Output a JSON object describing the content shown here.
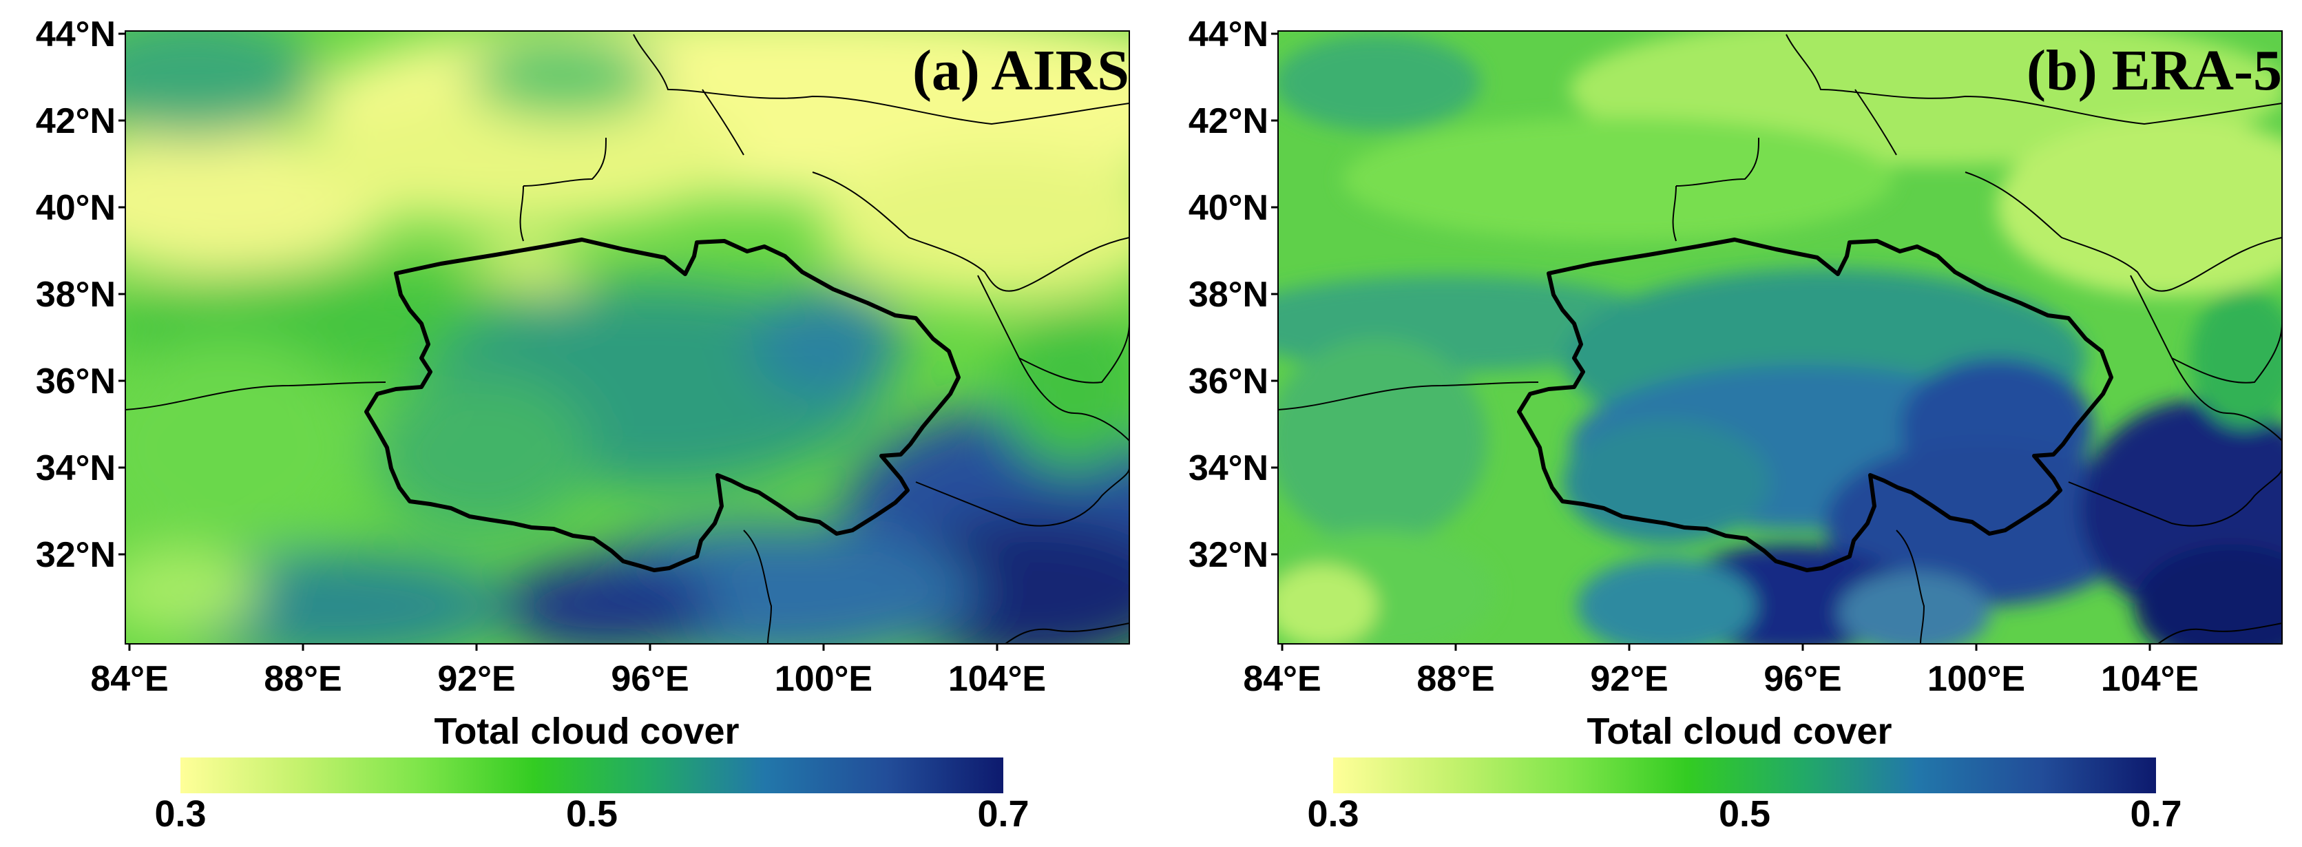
{
  "colors": {
    "colormap": [
      "#ffff99",
      "#c6f26e",
      "#7ee54a",
      "#33cc22",
      "#22aa66",
      "#2277aa",
      "#224d99",
      "#0d1a6e"
    ],
    "boundary": "#000000"
  },
  "panels": [
    {
      "id": "a",
      "title": "(a) AIRS",
      "lat_ticks": [
        "44°N",
        "42°N",
        "40°N",
        "38°N",
        "36°N",
        "34°N",
        "32°N"
      ],
      "lon_ticks": [
        "84°E",
        "88°E",
        "92°E",
        "96°E",
        "100°E",
        "104°E"
      ],
      "colorbar": {
        "label": "Total cloud cover",
        "ticks": [
          "0.3",
          "0.5",
          "0.7"
        ],
        "range": [
          0.3,
          0.7
        ]
      }
    },
    {
      "id": "b",
      "title": "(b) ERA-5",
      "lat_ticks": [
        "44°N",
        "42°N",
        "40°N",
        "38°N",
        "36°N",
        "34°N",
        "32°N"
      ],
      "lon_ticks": [
        "84°E",
        "88°E",
        "92°E",
        "96°E",
        "100°E",
        "104°E"
      ],
      "colorbar": {
        "label": "Total cloud cover",
        "ticks": [
          "0.3",
          "0.5",
          "0.7"
        ],
        "range": [
          0.3,
          0.7
        ]
      }
    }
  ]
}
